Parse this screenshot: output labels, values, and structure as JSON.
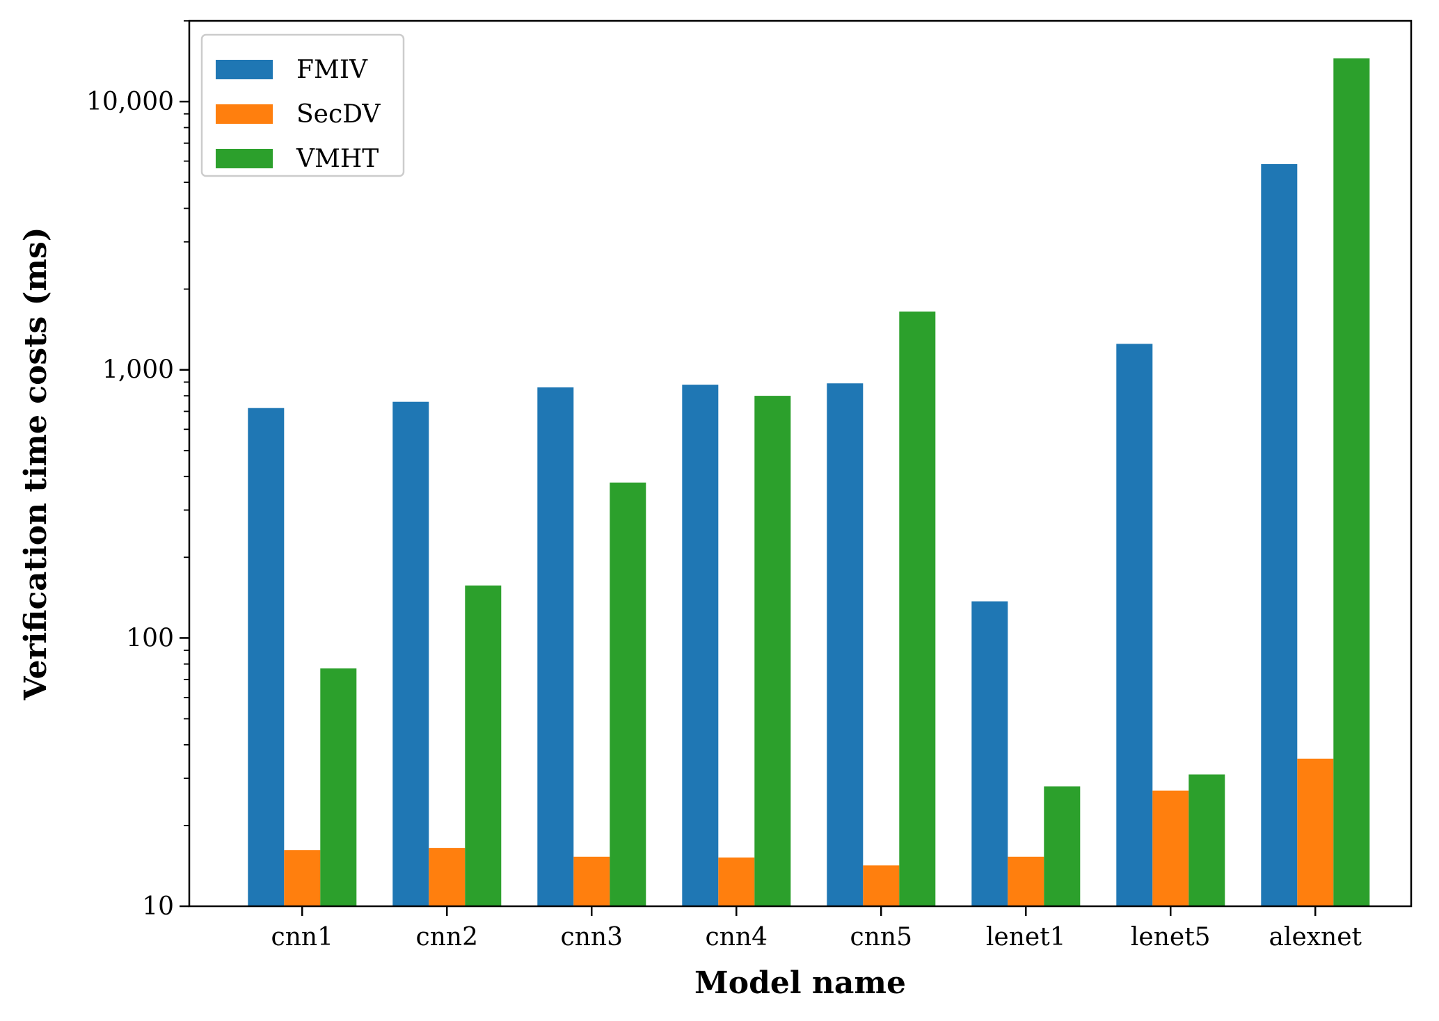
{
  "chart_data": {
    "type": "bar",
    "xlabel": "Model name",
    "ylabel": "Verification time costs (ms)",
    "yscale": "log",
    "ylim": [
      10,
      20000
    ],
    "yticks": [
      {
        "value": 10,
        "label": "10"
      },
      {
        "value": 100,
        "label": "100"
      },
      {
        "value": 1000,
        "label": "1,000"
      },
      {
        "value": 10000,
        "label": "10,000"
      }
    ],
    "categories": [
      "cnn1",
      "cnn2",
      "cnn3",
      "cnn4",
      "cnn5",
      "lenet1",
      "lenet5",
      "alexnet"
    ],
    "series": [
      {
        "name": "FMIV",
        "color": "#1f77b4",
        "values": [
          720,
          760,
          860,
          880,
          890,
          137,
          1250,
          5850
        ]
      },
      {
        "name": "SecDV",
        "color": "#ff7f0e",
        "values": [
          16.2,
          16.5,
          15.3,
          15.2,
          14.2,
          15.3,
          27,
          35.5
        ]
      },
      {
        "name": "VMHT",
        "color": "#2ca02c",
        "values": [
          77,
          157,
          380,
          800,
          1650,
          28,
          31,
          14500
        ]
      }
    ],
    "legend": "top-left",
    "grid": false
  }
}
